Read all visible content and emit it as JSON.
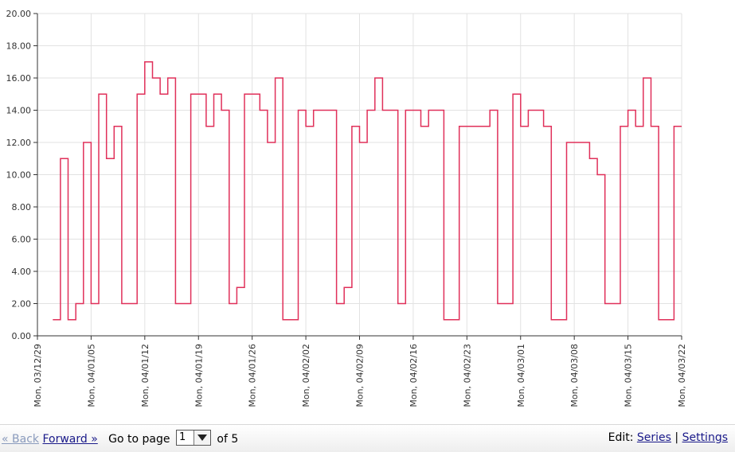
{
  "chart_data": {
    "type": "line",
    "step": true,
    "title": "",
    "xlabel": "",
    "ylabel": "",
    "ylim": [
      0,
      20
    ],
    "y_ticks": [
      "0.00",
      "2.00",
      "4.00",
      "6.00",
      "8.00",
      "10.00",
      "12.00",
      "14.00",
      "16.00",
      "18.00",
      "20.00"
    ],
    "x_tick_labels": [
      "Mon, 03/12/29",
      "Mon, 04/01/05",
      "Mon, 04/01/12",
      "Mon, 04/01/19",
      "Mon, 04/01/26",
      "Mon, 04/02/02",
      "Mon, 04/02/09",
      "Mon, 04/02/16",
      "Mon, 04/02/23",
      "Mon, 04/03/01",
      "Mon, 04/03/08",
      "Mon, 04/03/15",
      "Mon, 04/03/22"
    ],
    "grid": true,
    "line_color": "#e0305a",
    "series": [
      {
        "x": [
          "2003-12-31",
          "2004-01-01",
          "2004-01-02",
          "2004-01-03",
          "2004-01-04",
          "2004-01-05",
          "2004-01-06",
          "2004-01-07",
          "2004-01-08",
          "2004-01-09",
          "2004-01-10",
          "2004-01-11",
          "2004-01-12",
          "2004-01-13",
          "2004-01-14",
          "2004-01-15",
          "2004-01-16",
          "2004-01-17",
          "2004-01-18",
          "2004-01-19",
          "2004-01-20",
          "2004-01-21",
          "2004-01-22",
          "2004-01-23",
          "2004-01-24",
          "2004-01-25",
          "2004-01-26",
          "2004-01-27",
          "2004-01-28",
          "2004-01-29",
          "2004-01-30",
          "2004-01-31",
          "2004-02-01",
          "2004-02-02",
          "2004-02-03",
          "2004-02-04",
          "2004-02-05",
          "2004-02-06",
          "2004-02-07",
          "2004-02-08",
          "2004-02-09",
          "2004-02-10",
          "2004-02-11",
          "2004-02-12",
          "2004-02-13",
          "2004-02-14",
          "2004-02-15",
          "2004-02-16",
          "2004-02-17",
          "2004-02-18",
          "2004-02-19",
          "2004-02-20",
          "2004-02-21",
          "2004-02-22",
          "2004-02-23",
          "2004-02-24",
          "2004-02-25",
          "2004-02-26",
          "2004-02-27",
          "2004-02-28",
          "2004-02-29",
          "2004-03-01",
          "2004-03-02",
          "2004-03-03",
          "2004-03-04",
          "2004-03-05",
          "2004-03-06",
          "2004-03-07",
          "2004-03-08",
          "2004-03-09",
          "2004-03-10",
          "2004-03-11",
          "2004-03-12",
          "2004-03-13",
          "2004-03-14",
          "2004-03-15",
          "2004-03-16",
          "2004-03-17",
          "2004-03-18",
          "2004-03-19",
          "2004-03-20",
          "2004-03-21",
          "2004-03-22"
        ],
        "values": [
          1,
          11,
          1,
          2,
          12,
          2,
          15,
          11,
          13,
          2,
          2,
          15,
          17,
          16,
          15,
          16,
          2,
          2,
          15,
          15,
          13,
          15,
          14,
          2,
          3,
          15,
          15,
          14,
          12,
          16,
          1,
          1,
          14,
          13,
          14,
          14,
          14,
          2,
          3,
          13,
          12,
          14,
          16,
          14,
          14,
          2,
          14,
          14,
          13,
          14,
          14,
          1,
          1,
          13,
          13,
          13,
          13,
          14,
          2,
          2,
          15,
          13,
          14,
          14,
          13,
          1,
          1,
          12,
          12,
          12,
          11,
          10,
          2,
          2,
          13,
          14,
          13,
          16,
          13,
          1,
          1,
          13,
          13
        ]
      }
    ]
  },
  "footer": {
    "back_label": "« Back",
    "forward_label": "Forward »",
    "go_to_label": "Go to page",
    "page_value": "1",
    "of_label": "of 5",
    "edit_label": "Edit:",
    "series_label": "Series",
    "sep": "|",
    "settings_label": "Settings"
  }
}
